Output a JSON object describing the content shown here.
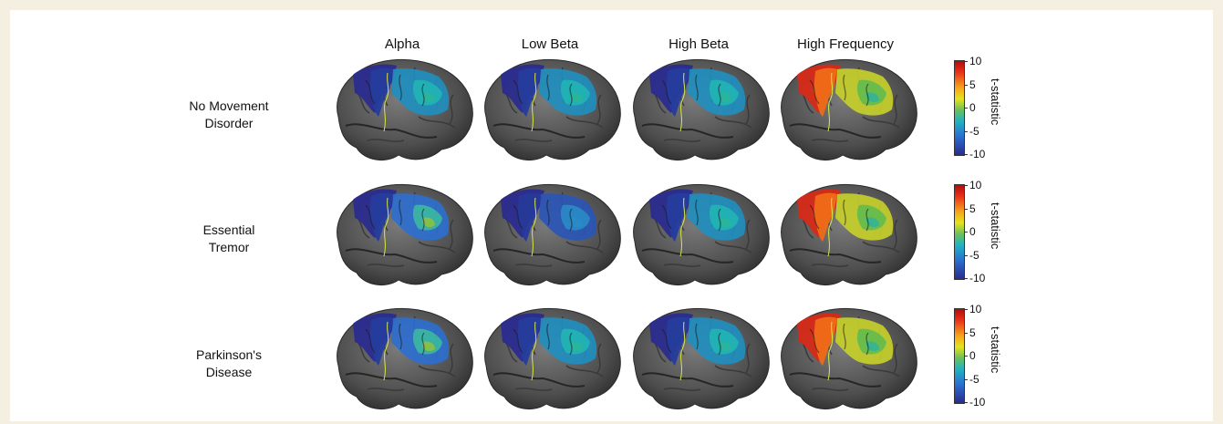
{
  "columns": [
    "Alpha",
    "Low Beta",
    "High Beta",
    "High Frequency"
  ],
  "rows": [
    {
      "line1": "No Movement",
      "line2": "Disorder"
    },
    {
      "line1": "Essential",
      "line2": "Tremor"
    },
    {
      "line1": "Parkinson's",
      "line2": "Disease"
    }
  ],
  "colorbar": {
    "label": "t-statistic",
    "ticks": [
      "10",
      "5",
      "0",
      "-5",
      "-10"
    ],
    "range": [
      -10,
      10
    ]
  },
  "brain_activation": [
    [
      "blue-teal",
      "blue-teal",
      "blue-teal",
      "red-green"
    ],
    [
      "blue-green",
      "blue",
      "blue-teal",
      "red-green"
    ],
    [
      "blue-green",
      "blue-teal",
      "blue-teal",
      "red-green"
    ]
  ],
  "colors": {
    "background": "#f5efe1",
    "panel": "#ffffff",
    "brain": "#5a5a5a"
  }
}
